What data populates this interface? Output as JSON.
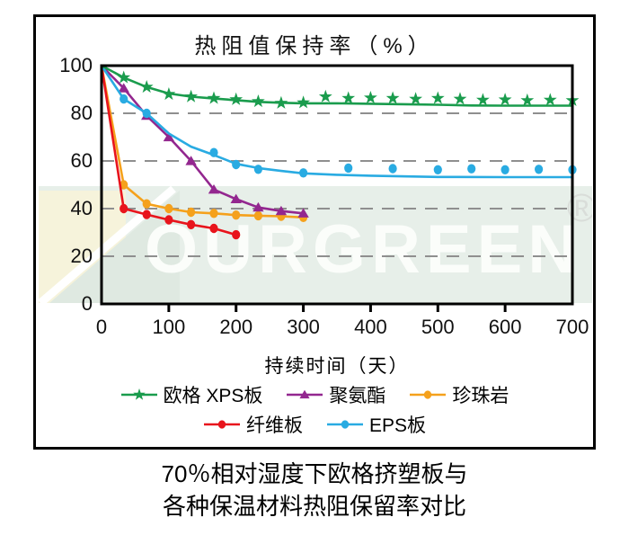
{
  "title": "热阻值保持率（%）",
  "x_axis": {
    "label": "持续时间（天）"
  },
  "watermark": {
    "text": "OURGREEN",
    "registered": "®"
  },
  "caption": {
    "line1": "70％相对湿度下欧格挤塑板与",
    "line2": "各种保温材料热阻保留率对比"
  },
  "colors": {
    "grid": "#8f8f8f",
    "axis": "#000000",
    "watermark_band": "#e7efe9",
    "watermark_cream": "#f6f3db",
    "watermark_mint": "#dfe9e1"
  },
  "chart_data": {
    "type": "line",
    "title": "热阻值保持率（%）",
    "xlabel": "持续时间（天）",
    "ylabel": "",
    "xlim": [
      0,
      700
    ],
    "ylim": [
      0,
      100
    ],
    "x_ticks": [
      0,
      100,
      200,
      300,
      400,
      500,
      600,
      700
    ],
    "y_ticks": [
      100,
      80,
      60,
      40,
      20,
      0
    ],
    "grid": "horizontal dashed at 20,40,60,80",
    "legend_position": "bottom",
    "legend_rows": [
      [
        "xps",
        "pu",
        "perlite"
      ],
      [
        "fiber",
        "eps"
      ]
    ],
    "series": [
      {
        "id": "perlite",
        "name": "珍珠岩",
        "color": "#f5a11c",
        "marker": "circle",
        "points": [
          [
            0,
            100
          ],
          [
            33,
            50
          ],
          [
            67,
            42
          ],
          [
            100,
            40
          ],
          [
            133,
            38.5
          ],
          [
            167,
            38
          ],
          [
            200,
            37.3
          ],
          [
            233,
            37
          ],
          [
            267,
            36.8
          ],
          [
            300,
            36.3
          ]
        ]
      },
      {
        "id": "fiber",
        "name": "纤维板",
        "color": "#e8141c",
        "marker": "circle",
        "points": [
          [
            0,
            100
          ],
          [
            33,
            40
          ],
          [
            67,
            37.5
          ],
          [
            100,
            35.3
          ],
          [
            133,
            33.3
          ],
          [
            167,
            31.7
          ],
          [
            200,
            29
          ]
        ]
      },
      {
        "id": "pu",
        "name": "聚氨酯",
        "color": "#93278f",
        "marker": "triangle",
        "points": [
          [
            0,
            100
          ],
          [
            33,
            90.5
          ],
          [
            67,
            79
          ],
          [
            100,
            70
          ],
          [
            133,
            60
          ],
          [
            167,
            48
          ],
          [
            200,
            44
          ],
          [
            233,
            40.5
          ],
          [
            267,
            39
          ],
          [
            300,
            38
          ]
        ]
      },
      {
        "id": "eps",
        "name": "EPS板",
        "color": "#29abe2",
        "marker": "circle",
        "points": [
          [
            33,
            86
          ],
          [
            67,
            80
          ],
          [
            167,
            63.5
          ],
          [
            200,
            58.5
          ],
          [
            233,
            56.5
          ],
          [
            300,
            55
          ],
          [
            367,
            57
          ],
          [
            433,
            56.8
          ],
          [
            500,
            56.3
          ],
          [
            550,
            56.7
          ],
          [
            600,
            56.3
          ],
          [
            650,
            56.5
          ],
          [
            700,
            56.3
          ]
        ],
        "line": [
          [
            0,
            100
          ],
          [
            33,
            86
          ],
          [
            67,
            80
          ],
          [
            100,
            71.5
          ],
          [
            133,
            66
          ],
          [
            167,
            62.5
          ],
          [
            200,
            58.8
          ],
          [
            233,
            57
          ],
          [
            267,
            55.8
          ],
          [
            300,
            54.8
          ],
          [
            350,
            54.2
          ],
          [
            400,
            53.8
          ],
          [
            500,
            53.3
          ],
          [
            600,
            53.2
          ],
          [
            700,
            53.2
          ]
        ]
      },
      {
        "id": "xps",
        "name": "欧格 XPS板",
        "color": "#1a9c4d",
        "marker": "star",
        "points": [
          [
            33,
            95
          ],
          [
            67,
            91
          ],
          [
            100,
            88
          ],
          [
            133,
            87
          ],
          [
            167,
            86.3
          ],
          [
            200,
            85.8
          ],
          [
            233,
            85
          ],
          [
            267,
            84.3
          ],
          [
            300,
            84.5
          ],
          [
            333,
            87
          ],
          [
            367,
            86.3
          ],
          [
            400,
            86.5
          ],
          [
            433,
            86.3
          ],
          [
            467,
            86
          ],
          [
            500,
            86.3
          ],
          [
            533,
            86
          ],
          [
            567,
            85.6
          ],
          [
            600,
            85.7
          ],
          [
            633,
            85.4
          ],
          [
            667,
            85.6
          ],
          [
            700,
            85.4
          ]
        ],
        "line": [
          [
            0,
            100
          ],
          [
            33,
            95
          ],
          [
            67,
            91
          ],
          [
            100,
            88.3
          ],
          [
            133,
            87
          ],
          [
            167,
            86.2
          ],
          [
            200,
            85.5
          ],
          [
            233,
            84.8
          ],
          [
            267,
            84.4
          ],
          [
            300,
            84.2
          ],
          [
            350,
            84.2
          ],
          [
            400,
            84
          ],
          [
            450,
            83.8
          ],
          [
            500,
            83.6
          ],
          [
            550,
            83.3
          ],
          [
            600,
            83.2
          ],
          [
            700,
            83.2
          ]
        ]
      }
    ]
  }
}
